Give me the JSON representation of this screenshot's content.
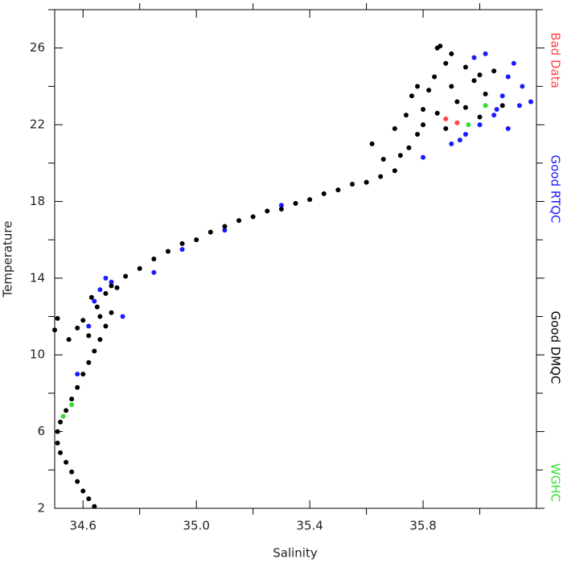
{
  "chart_data": {
    "type": "scatter",
    "x_label": "Salinity",
    "y_label": "Temperature",
    "xlim": [
      34.5,
      36.2
    ],
    "ylim": [
      2,
      28
    ],
    "xticks": [
      34.6,
      {
        "value": 35,
        "label": "35.0"
      },
      35.4,
      35.8
    ],
    "xminor": [
      34.8,
      35.2,
      35.6,
      36.0
    ],
    "yticks": [
      2,
      6,
      10,
      14,
      18,
      22,
      26
    ],
    "yminor": [
      4,
      8,
      12,
      16,
      20,
      24,
      28
    ],
    "series": [
      {
        "name": "Bad Data",
        "color": "#ff4444",
        "x": [
          35.88,
          35.92
        ],
        "values": [
          22.3,
          22.1
        ]
      },
      {
        "name": "Good RTQC",
        "color": "#1a1aff",
        "x": [
          34.58,
          34.62,
          34.66,
          34.7,
          34.74,
          34.68,
          34.64,
          34.85,
          34.95,
          35.1,
          35.3,
          35.6,
          35.8,
          35.9,
          35.95,
          36.0,
          36.05,
          36.08,
          36.1,
          36.12,
          36.15,
          36.18,
          36.02,
          35.98,
          36.1,
          36.06,
          35.93,
          36.14
        ],
        "values": [
          9.0,
          11.5,
          13.4,
          13.8,
          12.0,
          14.0,
          12.8,
          14.3,
          15.5,
          16.5,
          17.8,
          19.0,
          20.3,
          21.0,
          21.5,
          22.0,
          22.5,
          23.5,
          24.5,
          25.2,
          24.0,
          23.2,
          25.7,
          25.5,
          21.8,
          22.8,
          21.2,
          23.0
        ]
      },
      {
        "name": "Good DMQC",
        "color": "#000000",
        "x": [
          34.64,
          34.62,
          34.6,
          34.58,
          34.56,
          34.54,
          34.52,
          34.51,
          34.51,
          34.52,
          34.54,
          34.56,
          34.58,
          34.6,
          34.62,
          34.64,
          34.66,
          34.68,
          34.7,
          34.62,
          34.65,
          34.68,
          34.72,
          34.66,
          34.6,
          34.58,
          34.55,
          34.5,
          34.51,
          34.63,
          34.7,
          34.75,
          34.8,
          34.85,
          34.9,
          34.95,
          35.0,
          35.05,
          35.1,
          35.15,
          35.2,
          35.25,
          35.3,
          35.35,
          35.4,
          35.45,
          35.5,
          35.55,
          35.6,
          35.65,
          35.7,
          35.72,
          35.75,
          35.78,
          35.8,
          35.85,
          35.62,
          35.66,
          35.7,
          35.74,
          35.76,
          35.78,
          35.8,
          35.82,
          35.84,
          35.86,
          35.88,
          35.9,
          35.92,
          35.95,
          35.98,
          36.0,
          36.02,
          36.05,
          36.08,
          35.85,
          35.9,
          35.95,
          36.0,
          35.88
        ],
        "values": [
          2.1,
          2.5,
          2.9,
          3.4,
          3.9,
          4.4,
          4.9,
          5.4,
          6.0,
          6.5,
          7.1,
          7.7,
          8.3,
          9.0,
          9.6,
          10.2,
          10.8,
          11.5,
          12.2,
          11.0,
          12.5,
          13.2,
          13.5,
          12.0,
          11.8,
          11.4,
          10.8,
          11.3,
          11.9,
          13.0,
          13.6,
          14.1,
          14.5,
          15.0,
          15.4,
          15.8,
          16.0,
          16.4,
          16.7,
          17.0,
          17.2,
          17.5,
          17.6,
          17.9,
          18.1,
          18.4,
          18.6,
          18.9,
          19.0,
          19.3,
          19.6,
          20.4,
          20.8,
          21.5,
          22.0,
          22.6,
          21.0,
          20.2,
          21.8,
          22.5,
          23.5,
          24.0,
          22.8,
          23.8,
          24.5,
          26.1,
          25.2,
          24.0,
          23.2,
          25.0,
          24.3,
          22.4,
          23.6,
          24.8,
          23.0,
          26.0,
          25.7,
          22.9,
          24.6,
          21.8
        ]
      },
      {
        "name": "WGHC",
        "color": "#33dd33",
        "x": [
          34.53,
          34.56,
          36.02,
          35.96
        ],
        "values": [
          6.8,
          7.4,
          23.0,
          22.0
        ]
      }
    ]
  }
}
